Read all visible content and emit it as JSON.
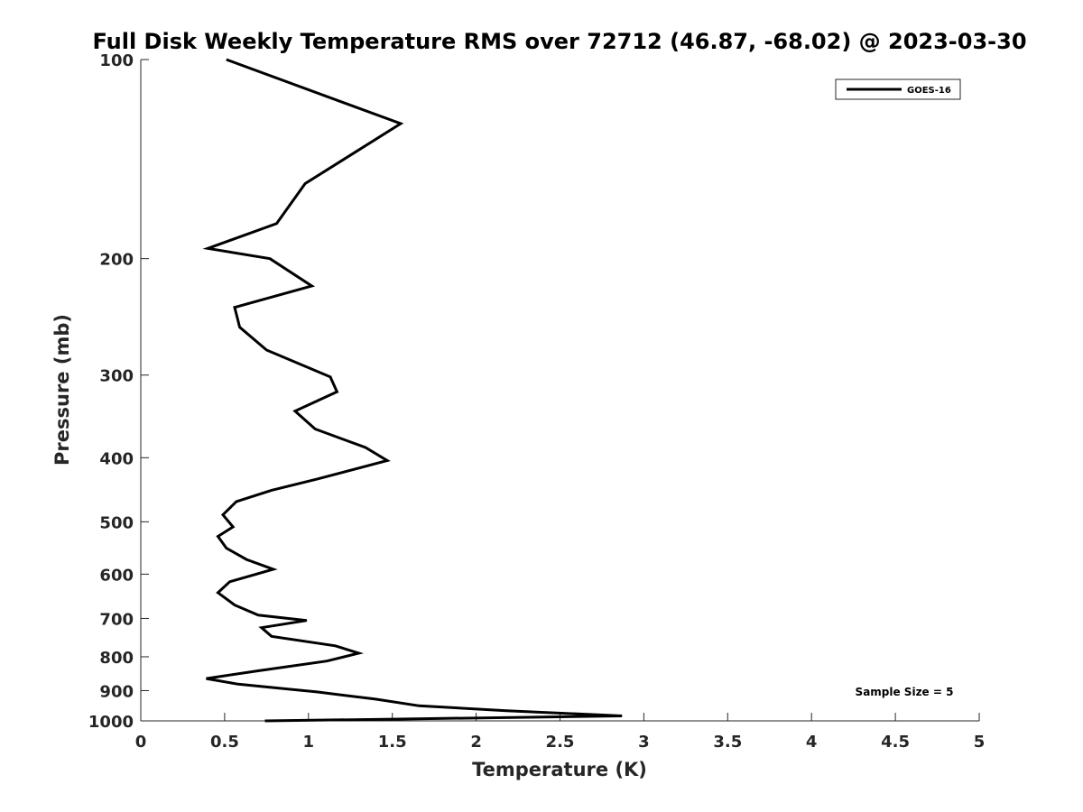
{
  "chart_data": {
    "type": "line",
    "title": "Full Disk Weekly Temperature RMS over 72712 (46.87, -68.02) @ 2023-03-30",
    "xlabel": "Temperature (K)",
    "ylabel": "Pressure (mb)",
    "xlim": [
      0,
      5
    ],
    "ylim": [
      100,
      1000
    ],
    "y_scale": "log",
    "y_reversed": true,
    "x_ticks": [
      0,
      0.5,
      1,
      1.5,
      2,
      2.5,
      3,
      3.5,
      4,
      4.5,
      5
    ],
    "x_tick_labels": [
      "0",
      "0.5",
      "1",
      "1.5",
      "2",
      "2.5",
      "3",
      "3.5",
      "4",
      "4.5",
      "5"
    ],
    "y_ticks": [
      100,
      200,
      300,
      400,
      500,
      600,
      700,
      800,
      900,
      1000
    ],
    "y_tick_labels": [
      "100",
      "200",
      "300",
      "400",
      "500",
      "600",
      "700",
      "800",
      "900",
      "1000"
    ],
    "grid": false,
    "legend_position": "top-right",
    "series": [
      {
        "name": "GOES-16",
        "color": "#000000",
        "points": [
          [
            0.51,
            100
          ],
          [
            1.55,
            125
          ],
          [
            0.98,
            154
          ],
          [
            0.81,
            177
          ],
          [
            0.4,
            193
          ],
          [
            0.77,
            200
          ],
          [
            1.02,
            220
          ],
          [
            0.56,
            237
          ],
          [
            0.59,
            254
          ],
          [
            0.75,
            275
          ],
          [
            1.13,
            302
          ],
          [
            1.17,
            318
          ],
          [
            0.92,
            340
          ],
          [
            1.04,
            362
          ],
          [
            1.34,
            386
          ],
          [
            1.47,
            404
          ],
          [
            1.05,
            431
          ],
          [
            0.78,
            448
          ],
          [
            0.57,
            466
          ],
          [
            0.49,
            488
          ],
          [
            0.55,
            509
          ],
          [
            0.46,
            526
          ],
          [
            0.51,
            548
          ],
          [
            0.63,
            570
          ],
          [
            0.79,
            590
          ],
          [
            0.53,
            616
          ],
          [
            0.46,
            640
          ],
          [
            0.56,
            668
          ],
          [
            0.7,
            692
          ],
          [
            0.99,
            705
          ],
          [
            0.72,
            723
          ],
          [
            0.78,
            745
          ],
          [
            1.16,
            770
          ],
          [
            1.3,
            790
          ],
          [
            1.11,
            812
          ],
          [
            0.7,
            840
          ],
          [
            0.39,
            863
          ],
          [
            0.58,
            880
          ],
          [
            1.05,
            904
          ],
          [
            1.4,
            927
          ],
          [
            1.66,
            949
          ],
          [
            2.18,
            965
          ],
          [
            2.87,
            983
          ],
          [
            1.5,
            994
          ],
          [
            0.74,
            1000
          ]
        ]
      }
    ],
    "annotation": "Sample Size = 5"
  }
}
